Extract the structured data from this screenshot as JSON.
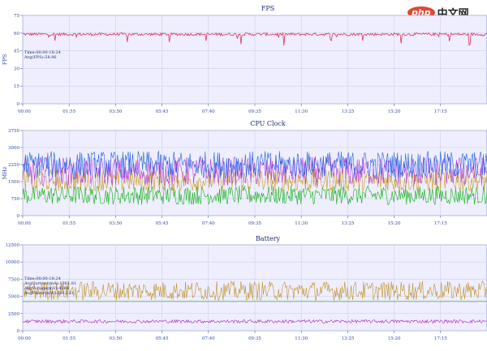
{
  "watermark": {
    "logo": "php",
    "text": "中文网"
  },
  "chart_data": [
    {
      "type": "line",
      "title": "FPS",
      "xlabel": "",
      "ylabel": "FPS",
      "x": [
        "00:00",
        "01:55",
        "03:50",
        "05:45",
        "07:40",
        "09:35",
        "11:30",
        "13:25",
        "15:20",
        "17:15"
      ],
      "ylim": [
        0,
        75
      ],
      "yticks": [
        0,
        15,
        30,
        45,
        60,
        75
      ],
      "legend_position": "left",
      "legend": [
        "Time:00:00-18:24",
        "Avg(FPS):58.96"
      ],
      "grid": true,
      "series": [
        {
          "name": "FPS",
          "color": "#e0325a",
          "level": 59.0,
          "noise": 1.2,
          "dips": 0.04,
          "dip_depth": 10,
          "min": 0,
          "max": 75
        }
      ]
    },
    {
      "type": "line",
      "title": "CPU Clock",
      "xlabel": "",
      "ylabel": "MHz",
      "x": [
        "00:00",
        "01:55",
        "03:50",
        "05:45",
        "07:40",
        "09:35",
        "11:30",
        "13:25",
        "15:20",
        "17:15"
      ],
      "ylim": [
        0,
        3750
      ],
      "yticks": [
        0,
        750,
        1500,
        2250,
        3000,
        3750
      ],
      "legend_position": "left",
      "grid": true,
      "series": [
        {
          "color": "#10b010",
          "level": 900,
          "noise": 420,
          "min": 400,
          "max": 1400
        },
        {
          "color": "#c89a20",
          "level": 1550,
          "noise": 520,
          "min": 1100,
          "max": 2800
        },
        {
          "color": "#b838d8",
          "level": 1950,
          "noise": 650,
          "min": 1150,
          "max": 3100
        },
        {
          "color": "#2060e0",
          "level": 2250,
          "noise": 600,
          "min": 1400,
          "max": 3100
        }
      ]
    },
    {
      "type": "line",
      "title": "Battery",
      "xlabel": "",
      "ylabel": "",
      "x": [
        "00:00",
        "01:55",
        "03:50",
        "05:45",
        "07:40",
        "09:35",
        "11:30",
        "13:25",
        "15:20",
        "17:15"
      ],
      "ylim": [
        0,
        12500
      ],
      "yticks": [
        0,
        2500,
        5000,
        7500,
        10000,
        12500
      ],
      "legend_position": "left",
      "legend": [
        "Time:00:00-18:24",
        "AvgCurrent(mA):1361.81",
        "AvgVoltage(mV):4264",
        "AvgPower(mW):5812.21"
      ],
      "grid": true,
      "series": [
        {
          "color": "#10a010",
          "level": 4264,
          "noise": 8,
          "min": 4200,
          "max": 4300
        },
        {
          "color": "#c09020",
          "level": 5812,
          "noise": 1400,
          "min": 3400,
          "max": 9800
        },
        {
          "color": "#b020b8",
          "level": 1362,
          "noise": 250,
          "min": 800,
          "max": 2100
        }
      ]
    }
  ]
}
